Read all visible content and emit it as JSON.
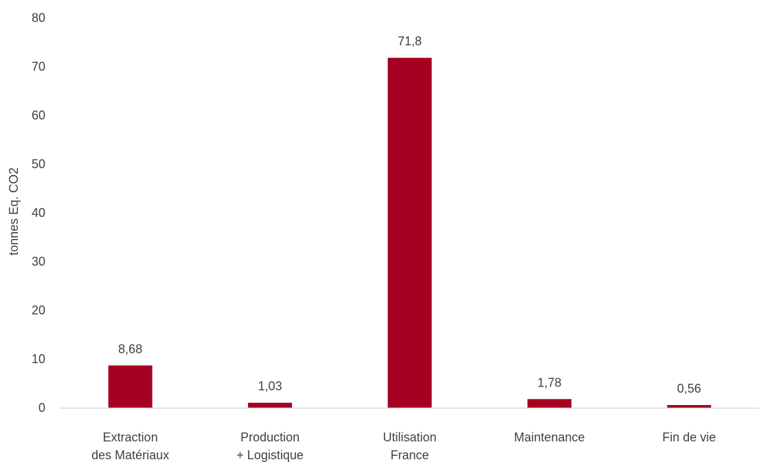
{
  "chart_data": {
    "type": "bar",
    "title": "",
    "xlabel": "",
    "ylabel": "tonnes Eq. CO2",
    "categories": [
      [
        "Extraction",
        "des Matériaux"
      ],
      [
        "Production",
        "+ Logistique"
      ],
      [
        "Utilisation",
        "France"
      ],
      [
        "Maintenance"
      ],
      [
        "Fin de vie"
      ]
    ],
    "values": [
      8.68,
      1.03,
      71.8,
      1.78,
      0.56
    ],
    "data_labels": [
      "8,68",
      "1,03",
      "71,8",
      "1,78",
      "0,56"
    ],
    "ylim": [
      0,
      80
    ],
    "yticks": [
      0,
      10,
      20,
      30,
      40,
      50,
      60,
      70,
      80
    ],
    "grid": false,
    "legend": "none",
    "colors": {
      "bar": "#A50021",
      "axis_line": "#D9D9D9",
      "text": "#404040"
    }
  }
}
